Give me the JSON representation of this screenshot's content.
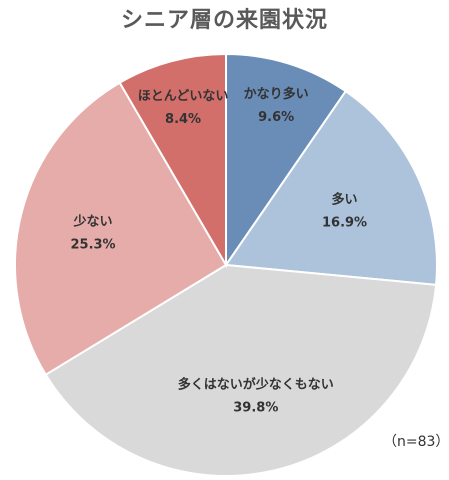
{
  "chart_data": {
    "type": "pie",
    "title": "シニア層の来園状況",
    "note": "（n=83）",
    "start": "12 o'clock",
    "direction": "clockwise",
    "slices": [
      {
        "label": "かなり多い",
        "value": 9.6,
        "value_label": "9.6%",
        "color": "#6A8DB8"
      },
      {
        "label": "多い",
        "value": 16.9,
        "value_label": "16.9%",
        "color": "#ADC3DB"
      },
      {
        "label": "多くはないが少なくもない",
        "value": 39.8,
        "value_label": "39.8%",
        "color": "#D9D9D9"
      },
      {
        "label": "少ない",
        "value": 25.3,
        "value_label": "25.3%",
        "color": "#E6ACAA"
      },
      {
        "label": "ほとんどいない",
        "value": 8.4,
        "value_label": "8.4%",
        "color": "#D26F6B"
      }
    ]
  }
}
